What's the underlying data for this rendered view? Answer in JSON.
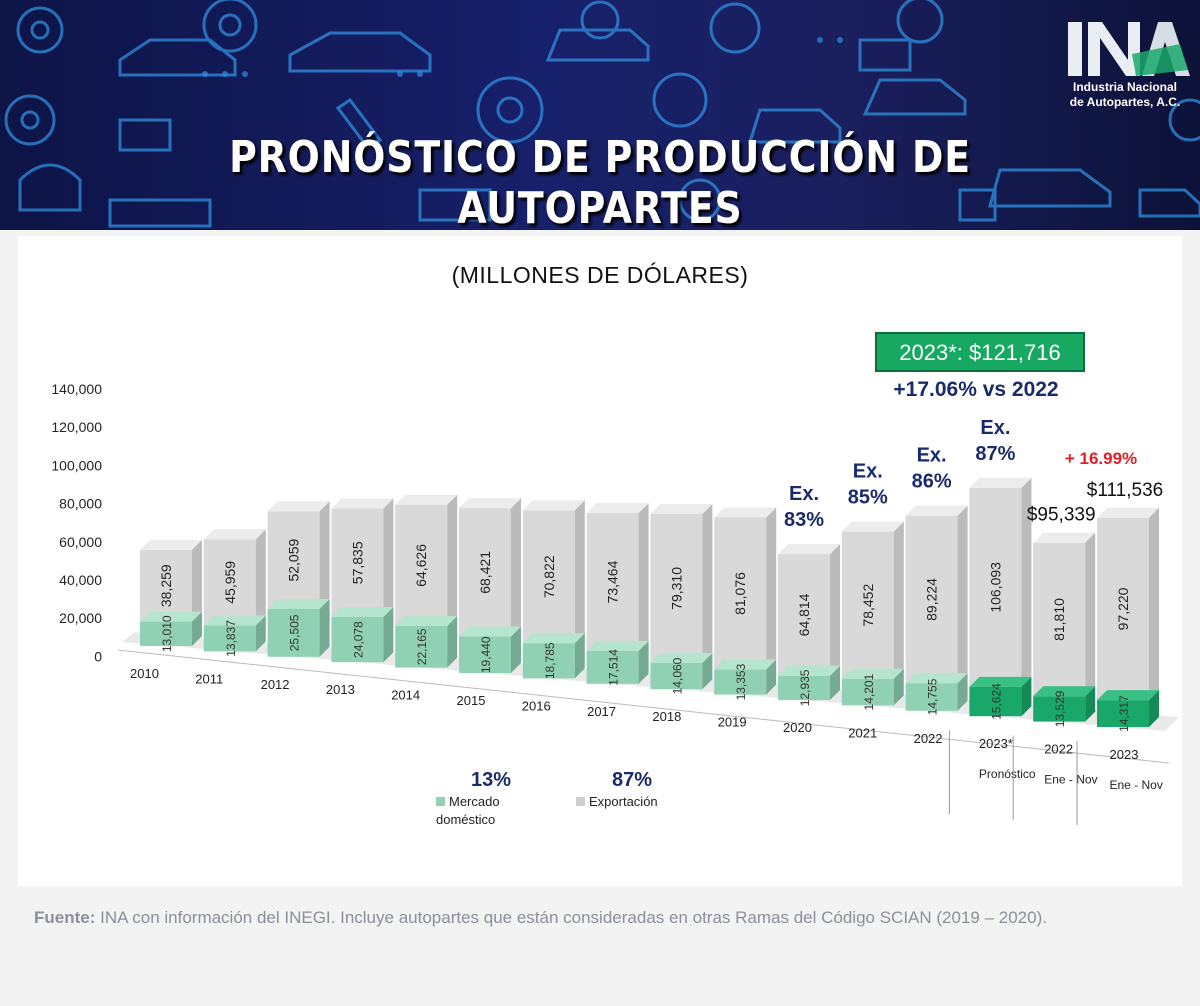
{
  "header": {
    "title": "PRONÓSTICO DE PRODUCCIÓN DE AUTOPARTES",
    "logo_mark": "INA",
    "logo_line1": "Industria Nacional",
    "logo_line2": "de Autopartes, A.C."
  },
  "subtitle": "(MILLONES DE DÓLARES)",
  "forecast_box": "2023*: $121,716",
  "forecast_growth": "+17.06% vs 2022",
  "footer": {
    "label": "Fuente:",
    "text": " INA con información del INEGI. Incluye autopartes que están consideradas en otras Ramas del Código SCIAN (2019 – 2020)."
  },
  "colors": {
    "domestic": "#8fd1b2",
    "domestic_highlight": "#1aa86a",
    "export": "#d9d9d9",
    "navy": "#1b2a6b",
    "red": "#e01f26",
    "green_box": "#17a862"
  },
  "chart_data": {
    "type": "bar",
    "stacked": true,
    "y_ticks": [
      "140,000",
      "120,000",
      "100,000",
      "80,000",
      "60,000",
      "40,000",
      "20,000",
      "0"
    ],
    "ylim": [
      0,
      140000
    ],
    "categories": [
      "2010",
      "2011",
      "2012",
      "2013",
      "2014",
      "2015",
      "2016",
      "2017",
      "2018",
      "2019",
      "2020",
      "2021",
      "2022",
      "2023*",
      "2022",
      "2023"
    ],
    "category_sublabels": [
      "",
      "",
      "",
      "",
      "",
      "",
      "",
      "",
      "",
      "",
      "",
      "",
      "",
      "Pronóstico",
      "Ene - Nov",
      "Ene - Nov"
    ],
    "series": [
      {
        "name": "Mercado doméstico",
        "values": [
          13010,
          13837,
          25505,
          24078,
          22165,
          19440,
          18785,
          17514,
          14060,
          13353,
          12935,
          14201,
          14755,
          15624,
          13529,
          14317
        ],
        "labels": [
          "13,010",
          "13,837",
          "25,505",
          "24,078",
          "22,165",
          "19,440",
          "18,785",
          "17,514",
          "14,060",
          "13,353",
          "12,935",
          "14,201",
          "14,755",
          "15,624",
          "13,529",
          "14,317"
        ]
      },
      {
        "name": "Exportación",
        "values": [
          38259,
          45959,
          52059,
          57835,
          64626,
          68421,
          70822,
          73464,
          79310,
          81076,
          64814,
          78452,
          89224,
          106093,
          81810,
          97220
        ],
        "labels": [
          "38,259",
          "45,959",
          "52,059",
          "57,835",
          "64,626",
          "68,421",
          "70,822",
          "73,464",
          "79,310",
          "81,076",
          "64,814",
          "78,452",
          "89,224",
          "106,093",
          "81,810",
          "97,220"
        ]
      }
    ],
    "legend": [
      {
        "pct": "13%",
        "label": "Mercado doméstico"
      },
      {
        "pct": "87%",
        "label": "Exportación"
      }
    ],
    "annotations": {
      "export_share": [
        {
          "index": 10,
          "line1": "Ex.",
          "line2": "83%"
        },
        {
          "index": 11,
          "line1": "Ex.",
          "line2": "85%"
        },
        {
          "index": 12,
          "line1": "Ex.",
          "line2": "86%"
        },
        {
          "index": 13,
          "line1": "Ex.",
          "line2": "87%"
        }
      ],
      "totals": [
        {
          "index": 14,
          "text": "$95,339"
        },
        {
          "index": 15,
          "text": "$111,536"
        }
      ],
      "growth": {
        "index": 15,
        "text": "+ 16.99%"
      }
    }
  }
}
